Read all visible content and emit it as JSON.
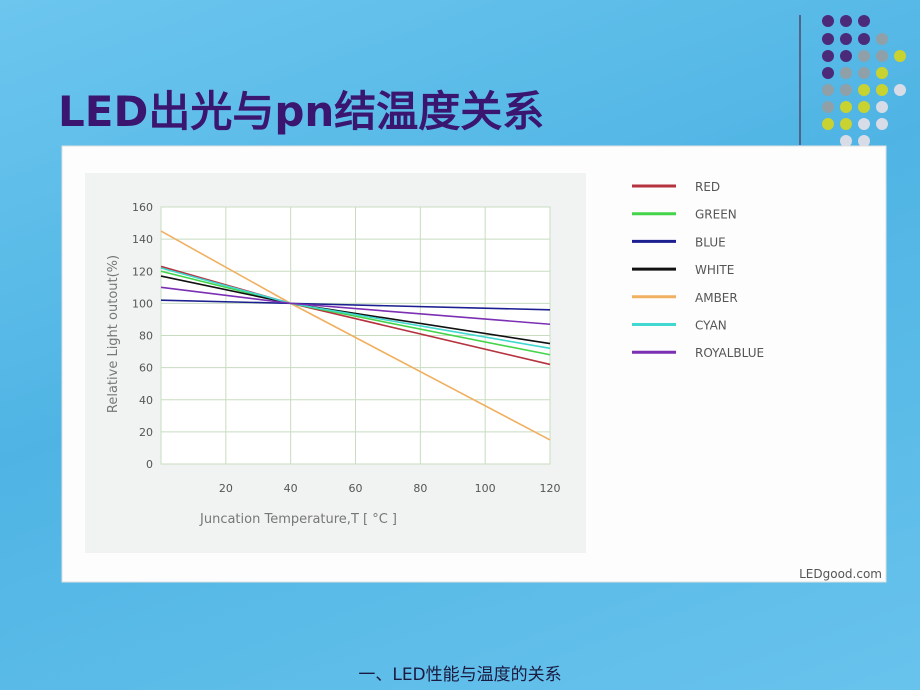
{
  "title": "LED出光与pn结温度关系",
  "footer": "一、LED性能与温度的关系",
  "chart_data": {
    "type": "line",
    "xlabel": "Juncation Temperature,T [ °C ]",
    "ylabel": "Relative Light outout(%)",
    "watermark": "LEDgood.com",
    "x": [
      0,
      40,
      120
    ],
    "xlim": [
      0,
      120
    ],
    "xticks": [
      20,
      40,
      60,
      80,
      100,
      120
    ],
    "ylim": [
      0,
      160
    ],
    "yticks": [
      0,
      20,
      40,
      60,
      80,
      100,
      120,
      140,
      160
    ],
    "grid": true,
    "series": [
      {
        "name": "RED",
        "color": "#b5333f",
        "values": [
          123,
          100,
          62
        ]
      },
      {
        "name": "GREEN",
        "color": "#44d44a",
        "values": [
          120,
          100,
          68
        ]
      },
      {
        "name": "BLUE",
        "color": "#1b1f8f",
        "values": [
          102,
          100,
          96
        ]
      },
      {
        "name": "WHITE",
        "color": "#111111",
        "values": [
          117,
          100,
          75
        ]
      },
      {
        "name": "AMBER",
        "color": "#f0b060",
        "values": [
          145,
          100,
          15
        ]
      },
      {
        "name": "CYAN",
        "color": "#40d8d0",
        "values": [
          122,
          100,
          72
        ]
      },
      {
        "name": "ROYALBLUE",
        "color": "#7b2fb3",
        "values": [
          110,
          100,
          87
        ]
      }
    ]
  }
}
